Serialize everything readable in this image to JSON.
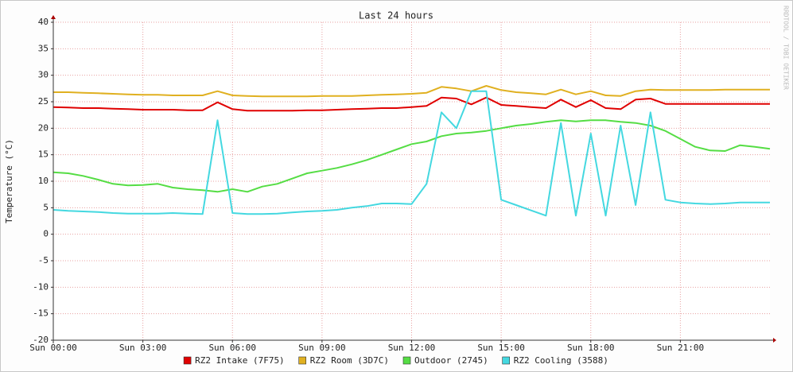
{
  "chart_data": {
    "type": "line",
    "title": "Last 24 hours",
    "y_label": "Temperature (°C)",
    "watermark": "RRDTOOL / TOBI OETIKER",
    "x": [
      0,
      0.5,
      1,
      1.5,
      2,
      2.5,
      3,
      3.5,
      4,
      4.5,
      5,
      5.5,
      6,
      6.5,
      7,
      7.5,
      8,
      8.5,
      9,
      9.5,
      10,
      10.5,
      11,
      11.5,
      12,
      12.5,
      13,
      13.5,
      14,
      14.5,
      15,
      15.5,
      16,
      16.5,
      17,
      17.5,
      18,
      18.5,
      19,
      19.5,
      20,
      20.5,
      21,
      21.5,
      22,
      22.5,
      23,
      23.5,
      24
    ],
    "xlim": [
      0,
      24
    ],
    "xticks": [
      {
        "value": 0,
        "label": "Sun 00:00"
      },
      {
        "value": 3,
        "label": "Sun 03:00"
      },
      {
        "value": 6,
        "label": "Sun 06:00"
      },
      {
        "value": 9,
        "label": "Sun 09:00"
      },
      {
        "value": 12,
        "label": "Sun 12:00"
      },
      {
        "value": 15,
        "label": "Sun 15:00"
      },
      {
        "value": 18,
        "label": "Sun 18:00"
      },
      {
        "value": 21,
        "label": "Sun 21:00"
      }
    ],
    "ylim": [
      -20,
      40
    ],
    "yticks": [
      -20,
      -15,
      -10,
      -5,
      0,
      5,
      10,
      15,
      20,
      25,
      30,
      35,
      40
    ],
    "grid": true,
    "legend_position": "bottom",
    "series": [
      {
        "name": "RZ2 Intake (7F75)",
        "color": "#e00000",
        "values": [
          24.0,
          23.9,
          23.8,
          23.8,
          23.7,
          23.6,
          23.5,
          23.5,
          23.5,
          23.4,
          23.4,
          24.9,
          23.6,
          23.3,
          23.3,
          23.3,
          23.3,
          23.4,
          23.4,
          23.5,
          23.6,
          23.7,
          23.8,
          23.8,
          24.0,
          24.2,
          25.8,
          25.6,
          24.5,
          25.8,
          24.4,
          24.2,
          24.0,
          23.8,
          25.4,
          24.0,
          25.3,
          23.8,
          23.6,
          25.4,
          25.6,
          24.6,
          24.6,
          24.6,
          24.6,
          24.6,
          24.6,
          24.6,
          24.6
        ]
      },
      {
        "name": "RZ2 Room (3D7C)",
        "color": "#e0b020",
        "values": [
          26.8,
          26.8,
          26.7,
          26.6,
          26.5,
          26.4,
          26.3,
          26.3,
          26.2,
          26.2,
          26.2,
          27.0,
          26.2,
          26.1,
          26.0,
          26.0,
          26.0,
          26.0,
          26.1,
          26.1,
          26.1,
          26.2,
          26.3,
          26.4,
          26.5,
          26.7,
          27.8,
          27.5,
          27.0,
          28.0,
          27.2,
          26.8,
          26.6,
          26.4,
          27.3,
          26.4,
          27.0,
          26.2,
          26.1,
          27.0,
          27.3,
          27.2,
          27.2,
          27.2,
          27.2,
          27.3,
          27.3,
          27.3,
          27.3
        ]
      },
      {
        "name": "Outdoor (2745)",
        "color": "#55dd44",
        "values": [
          11.7,
          11.5,
          11.0,
          10.3,
          9.5,
          9.2,
          9.3,
          9.5,
          8.8,
          8.5,
          8.3,
          8.0,
          8.5,
          8.0,
          9.0,
          9.5,
          10.5,
          11.5,
          12.0,
          12.5,
          13.2,
          14.0,
          15.0,
          16.0,
          17.0,
          17.5,
          18.5,
          19.0,
          19.2,
          19.5,
          20.0,
          20.5,
          20.8,
          21.2,
          21.5,
          21.3,
          21.5,
          21.5,
          21.2,
          21.0,
          20.5,
          19.5,
          18.0,
          16.5,
          15.8,
          15.7,
          16.8,
          16.5,
          16.1
        ]
      },
      {
        "name": "RZ2 Cooling (3588)",
        "color": "#44d8e0",
        "values": [
          4.6,
          4.4,
          4.3,
          4.2,
          4.0,
          3.9,
          3.9,
          3.9,
          4.0,
          3.9,
          3.8,
          21.5,
          4.0,
          3.8,
          3.8,
          3.9,
          4.1,
          4.3,
          4.4,
          4.6,
          5.0,
          5.3,
          5.8,
          5.8,
          5.7,
          9.5,
          23.0,
          20.0,
          27.0,
          27.0,
          6.5,
          5.5,
          4.5,
          3.5,
          21.0,
          3.5,
          19.0,
          3.5,
          20.5,
          5.5,
          23.0,
          6.5,
          6.0,
          5.8,
          5.7,
          5.8,
          6.0,
          6.0,
          6.0
        ]
      }
    ]
  }
}
